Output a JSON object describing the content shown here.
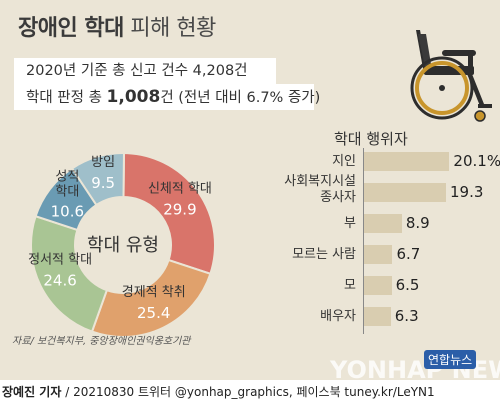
{
  "title": {
    "main": "장애인 학대",
    "rest": "피해 현황"
  },
  "summary": {
    "line1": "2020년 기준 총 신고 건수 4,208건",
    "line2_prefix": "학대 판정 총 ",
    "line2_number": "1,008",
    "line2_suffix": "건 (전년 대비 6.7% 증가)"
  },
  "icon": "wheelchair-icon",
  "source": "자료/ 보건복지부, 중앙장애인권익옹호기관",
  "credit": {
    "reporter": "장예진 기자",
    "rest": " / 20210830 트위터 @yonhap_graphics, 페이스북 tuney.kr/LeYN1"
  },
  "watermark": "YONHAP NEWS",
  "brand": "연합뉴스",
  "colors": {
    "background": "#ebe5d6",
    "bar": "#d9cdb0"
  },
  "chart_data": [
    {
      "type": "pie",
      "title": "학대 유형",
      "unit": "%",
      "labels": [
        "신체적 학대",
        "경제적 착취",
        "정서적 학대",
        "성적 학대",
        "방임"
      ],
      "display_values": [
        "29.9",
        "25.4",
        "24.6",
        "10.6",
        "9.5"
      ],
      "values": [
        29.9,
        25.4,
        24.6,
        10.6,
        9.5
      ],
      "colors": [
        "#d9746a",
        "#e0a16c",
        "#a9c594",
        "#6a9bb3",
        "#9fbfca"
      ]
    },
    {
      "type": "bar",
      "orientation": "horizontal",
      "title": "학대 행위자",
      "unit": "%",
      "categories": [
        "지인",
        "사회복지시설\n종사자",
        "부",
        "모르는 사람",
        "모",
        "배우자"
      ],
      "display_values": [
        "20.1%",
        "19.3",
        "8.9",
        "6.7",
        "6.5",
        "6.3"
      ],
      "values": [
        20.1,
        19.3,
        8.9,
        6.7,
        6.5,
        6.3
      ]
    }
  ]
}
